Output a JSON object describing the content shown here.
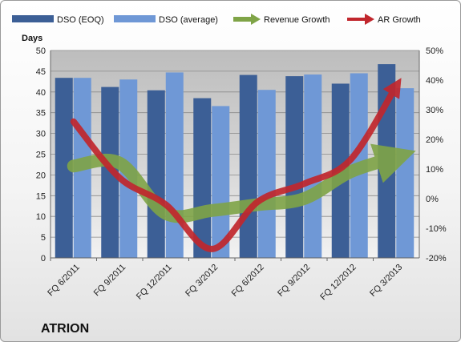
{
  "chart_data": {
    "type": "bar",
    "title": "",
    "caption": "ATRION",
    "categories": [
      "FQ 6/2011",
      "FQ 9/2011",
      "FQ 12/2011",
      "FQ 3/2012",
      "FQ 6/2012",
      "FQ 9/2012",
      "FQ 12/2012",
      "FQ 3/2013"
    ],
    "y_left": {
      "label": "Days",
      "min": 0,
      "max": 50,
      "ticks": [
        0,
        5,
        10,
        15,
        20,
        25,
        30,
        35,
        40,
        45,
        50
      ]
    },
    "y_right": {
      "label": "",
      "min": -20,
      "max": 50,
      "ticks": [
        "-20%",
        "-10%",
        "0%",
        "10%",
        "20%",
        "30%",
        "40%",
        "50%"
      ]
    },
    "bar_series": [
      {
        "name": "DSO (EOQ)",
        "color": "#3c5f96",
        "values": [
          43.4,
          41.2,
          40.4,
          38.5,
          44.1,
          43.8,
          42.0,
          46.7
        ]
      },
      {
        "name": "DSO (average)",
        "color": "#6f98d6",
        "values": [
          43.4,
          43.0,
          44.7,
          36.6,
          40.5,
          44.2,
          44.5,
          40.9
        ]
      }
    ],
    "line_series": [
      {
        "name": "Revenue Growth",
        "color": "#7fa447",
        "axis": "right",
        "values": [
          11,
          12,
          -5,
          -4,
          -2,
          0,
          9,
          14
        ]
      },
      {
        "name": "AR Growth",
        "color": "#c1272d",
        "axis": "right",
        "values": [
          26,
          7,
          -2,
          -17,
          -1,
          5,
          13,
          38
        ]
      }
    ],
    "legend_position": "top",
    "grid": true
  }
}
